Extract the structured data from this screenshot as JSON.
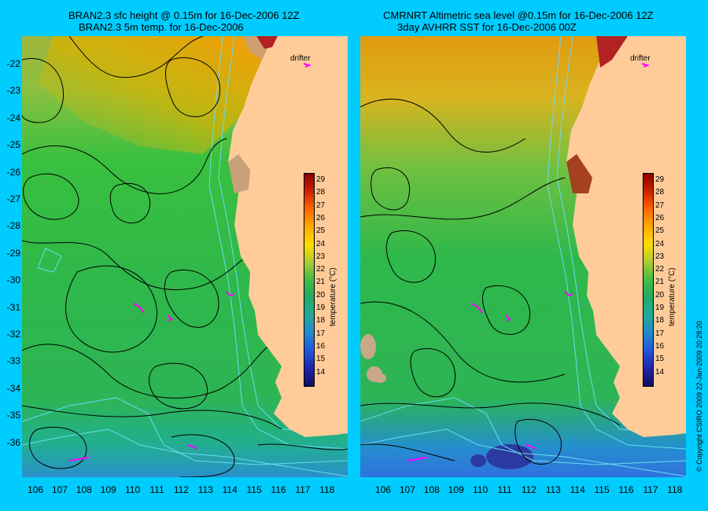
{
  "left_panel": {
    "title_line1": "BRAN2.3 sfc height @ 0.15m for 16-Dec-2006 12Z",
    "title_line2": "BRAN2.3 5m temp. for 16-Dec-2006"
  },
  "right_panel": {
    "title_line1": "CMRNRT Altimetric sea level  @0.15m  for 16-Dec-2006 12Z",
    "title_line2": "3day AVHRR SST for 16-Dec-2006 00Z"
  },
  "map": {
    "lat_labels": [
      "-22",
      "-23",
      "-24",
      "-25",
      "-26",
      "-27",
      "-28",
      "-29",
      "-30",
      "-31",
      "-32",
      "-33",
      "-34",
      "-35",
      "-36"
    ],
    "lon_labels": [
      "106",
      "107",
      "108",
      "109",
      "110",
      "111",
      "112",
      "113",
      "114",
      "115",
      "116",
      "117",
      "118"
    ],
    "drifter_label": "drifter",
    "colors": {
      "land": "#FFCC99",
      "background": "#00CCFF",
      "contour": "#000000",
      "bathymetry": "#66DDEE",
      "drifter": "#FF00FF"
    }
  },
  "colorbar": {
    "labels": [
      "29",
      "28",
      "27",
      "26",
      "25",
      "24",
      "23",
      "22",
      "21",
      "20",
      "19",
      "18",
      "17",
      "16",
      "15",
      "14"
    ],
    "title": "temperature (°C)"
  },
  "copyright": "© Copyright CSIRO 2009   22-Jan-2009 20:28:20"
}
